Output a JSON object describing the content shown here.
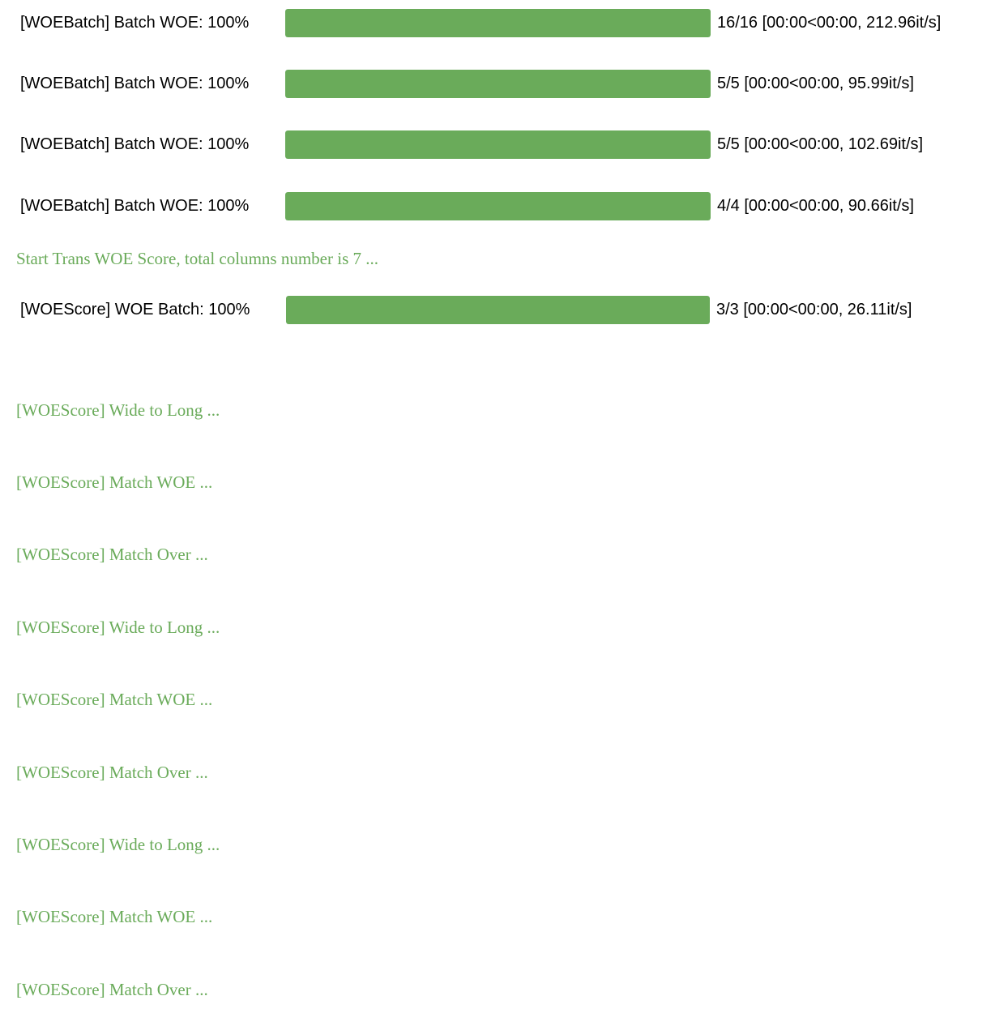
{
  "batch_progress_bars": [
    {
      "prefix": "[WOEBatch] Batch WOE: 100%",
      "progress": 1.0,
      "suffix": "16/16 [00:00<00:00, 212.96it/s]"
    },
    {
      "prefix": "[WOEBatch] Batch WOE: 100%",
      "progress": 1.0,
      "suffix": "5/5 [00:00<00:00, 95.99it/s]"
    },
    {
      "prefix": "[WOEBatch] Batch WOE: 100%",
      "progress": 1.0,
      "suffix": "5/5 [00:00<00:00, 102.69it/s]"
    },
    {
      "prefix": "[WOEBatch] Batch WOE: 100%",
      "progress": 1.0,
      "suffix": "4/4 [00:00<00:00, 90.66it/s]"
    }
  ],
  "start_message": "Start Trans WOE Score, total columns number is 7 ...",
  "score_progress_bar": {
    "prefix": "[WOEScore] WOE Batch: 100%",
    "progress": 1.0,
    "suffix": "3/3 [00:00<00:00, 26.11it/s]"
  },
  "score_log_lines": [
    "[WOEScore] Wide to Long ...",
    "[WOEScore] Match WOE ...",
    "[WOEScore] Match Over ...",
    "[WOEScore] Wide to Long ...",
    "[WOEScore] Match WOE ...",
    "[WOEScore] Match Over ...",
    "[WOEScore] Wide to Long ...",
    "[WOEScore] Match WOE ...",
    "[WOEScore] Match Over ..."
  ],
  "colors": {
    "bar_fill": "#6aab5a",
    "log_text": "#6aab5a",
    "bar_track": "#e9ecef",
    "text": "#000000"
  }
}
